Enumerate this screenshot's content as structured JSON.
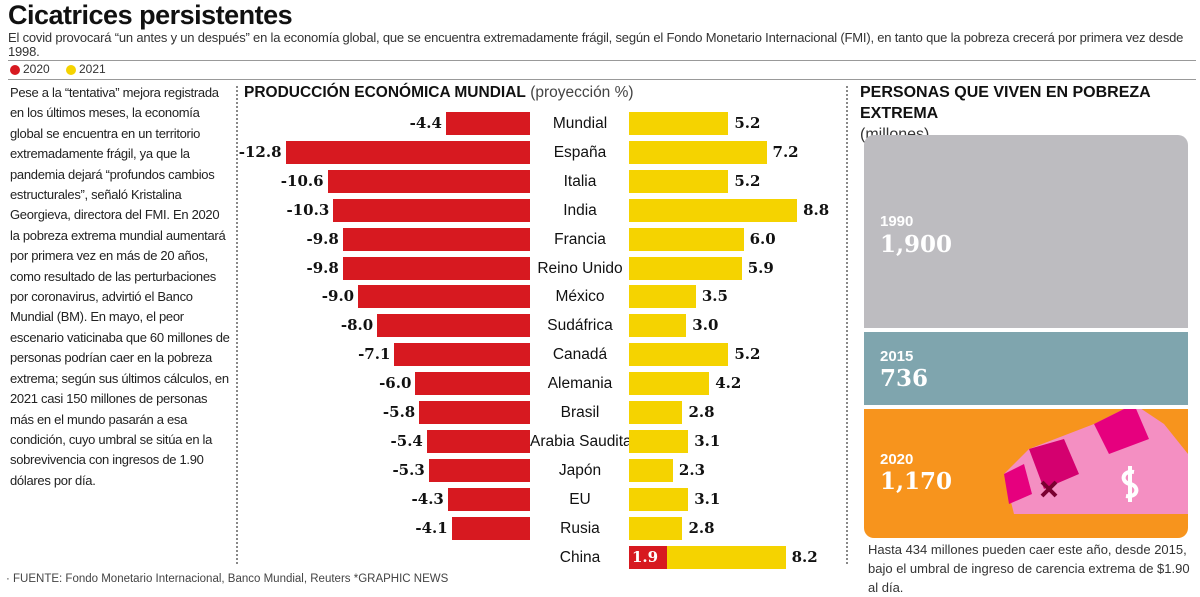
{
  "header": {
    "title": "Cicatrices persistentes",
    "subtitle": "El covid provocará “un antes y un después” en la economía global, que se encuentra extremadamente frágil, según el Fondo Monetario Internacional (FMI), en tanto que la pobreza crecerá por primera vez desde 1998."
  },
  "legend": [
    {
      "label": "2020",
      "color": "#d71920"
    },
    {
      "label": "2021",
      "color": "#f5d300"
    }
  ],
  "body_text": "Pese a la “tentativa” mejora registrada en los últimos meses, la economía global se encuentra en un territorio extremadamente frágil, ya que la pandemia dejará “profundos cambios estructurales”, señaló Kristalina Georgieva, directora del FMI. En 2020 la pobreza extrema mundial aumentará por primera vez en más de 20 años, como resultado de las perturbaciones por  coronavirus, advirtió el Banco Mundial (BM). En mayo, el peor escenario vaticinaba que 60 millones de personas podrían caer en la pobreza extrema; según sus últimos cálculos, en 2021 casi 150 millones de personas más en el mundo pasarán a esa condición, cuyo umbral se sitúa en la sobrevivencia con ingresos de 1.90 dólares por día.",
  "chart_data": [
    {
      "type": "bar",
      "title": "PRODUCCIÓN ECONÓMICA MUNDIAL",
      "subtitle": "(proyección %)",
      "categories": [
        "Mundial",
        "España",
        "Italia",
        "India",
        "Francia",
        "Reino Unido",
        "México",
        "Sudáfrica",
        "Canadá",
        "Alemania",
        "Brasil",
        "Arabia Saudita",
        "Japón",
        "EU",
        "Rusia",
        "China"
      ],
      "series": [
        {
          "name": "2020",
          "color": "#d71920",
          "values": [
            -4.4,
            -12.8,
            -10.6,
            -10.3,
            -9.8,
            -9.8,
            -9.0,
            -8.0,
            -7.1,
            -6.0,
            -5.8,
            -5.4,
            -5.3,
            -4.3,
            -4.1,
            1.9
          ],
          "labels": [
            "-4.4",
            "-12.8",
            "-10.6",
            "-10.3",
            "-9.8",
            "-9.8",
            "-9.0",
            "-8.0",
            "-7.1",
            "-6.0",
            "-5.8",
            "-5.4",
            "-5.3",
            "-4.3",
            "-4.1",
            "1.9"
          ]
        },
        {
          "name": "2021",
          "color": "#f5d300",
          "values": [
            5.2,
            7.2,
            5.2,
            8.8,
            6.0,
            5.9,
            3.5,
            3.0,
            5.2,
            4.2,
            2.8,
            3.1,
            2.3,
            3.1,
            2.8,
            8.2
          ],
          "labels": [
            "5.2",
            "7.2",
            "5.2",
            "8.8",
            "6.0",
            "5.9",
            "3.5",
            "3.0",
            "5.2",
            "4.2",
            "2.8",
            "3.1",
            "2.3",
            "3.1",
            "2.8",
            "8.2"
          ]
        }
      ]
    },
    {
      "type": "bar",
      "title": "PERSONAS QUE VIVEN EN POBREZA EXTREMA",
      "subtitle": "(millones)",
      "categories": [
        "1990",
        "2015",
        "2020"
      ],
      "values": [
        1900,
        736,
        1170
      ],
      "labels": [
        "1,900",
        "736",
        "1,170"
      ],
      "colors": [
        "#bdbcc0",
        "#7fa5ae",
        "#f7941d"
      ]
    }
  ],
  "note": "Hasta 434 millones pueden caer este año, desde 2015, bajo el umbral de ingreso de carencia extrema de $1.90 al día.",
  "source": "· FUENTE: Fondo Monetario Internacional, Banco Mundial, Reuters  *GRAPHIC NEWS"
}
